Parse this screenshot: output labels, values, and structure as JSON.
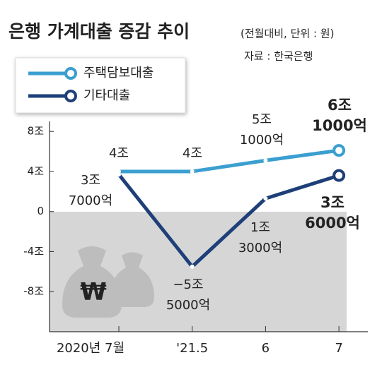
{
  "chart_data": {
    "type": "line",
    "title": "은행 가계대출 증감 추이",
    "subtitle": "(전월대비, 단위 : 원)",
    "source": "자료 : 한국은행",
    "categories": [
      "2020년 7월",
      "'21.5",
      "6",
      "7"
    ],
    "ylim": [
      -12,
      9
    ],
    "yticks": [
      {
        "value": 8,
        "label": "8조"
      },
      {
        "value": 4,
        "label": "4조"
      },
      0,
      {
        "value": -4,
        "label": "-4조"
      },
      {
        "value": -8,
        "label": "-8조"
      }
    ],
    "series": [
      {
        "name": "주택담보대출",
        "color": "#3a9fd0",
        "values": [
          4,
          4,
          5.1,
          6.1
        ],
        "value_labels": [
          [
            "4조"
          ],
          [
            "4조"
          ],
          [
            "5조",
            "1000억"
          ],
          [
            "6조",
            "1000억"
          ]
        ]
      },
      {
        "name": "기타대출",
        "color": "#1e3f78",
        "values": [
          3.7,
          -5.5,
          1.3,
          3.6
        ],
        "value_labels": [
          [
            "3조",
            "7000억"
          ],
          [
            "−5조",
            "5000억"
          ],
          [
            "1조",
            "3000억"
          ],
          [
            "3조",
            "6000억"
          ]
        ]
      }
    ]
  }
}
